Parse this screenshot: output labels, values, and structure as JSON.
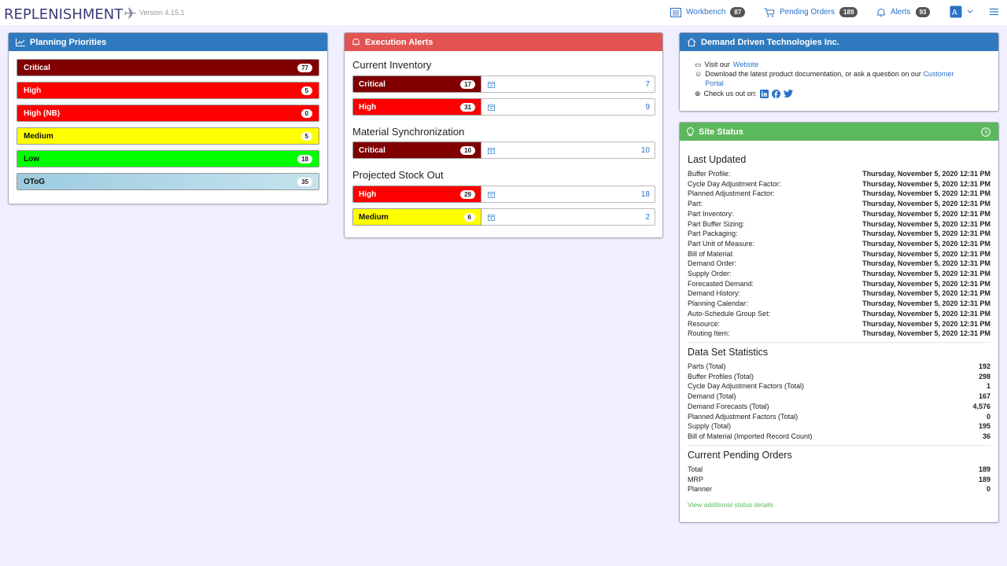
{
  "app": {
    "logo_text": "REPLENISHMENT",
    "version": "Version 4.15.1"
  },
  "nav": {
    "workbench_label": "Workbench",
    "workbench_count": "87",
    "pending_orders_label": "Pending Orders",
    "pending_orders_count": "189",
    "alerts_label": "Alerts",
    "alerts_count": "93"
  },
  "planning": {
    "title": "Planning Priorities",
    "items": [
      {
        "label": "Critical",
        "count": "77",
        "color": "#800000",
        "text_color": "#ffffff"
      },
      {
        "label": "High",
        "count": "5",
        "color": "#ff0000",
        "text_color": "#ffffff"
      },
      {
        "label": "High (NB)",
        "count": "0",
        "color": "#ff0000",
        "text_color": "#ffffff"
      },
      {
        "label": "Medium",
        "count": "5",
        "color": "#ffff00",
        "text_color": "#111111"
      },
      {
        "label": "Low",
        "count": "18",
        "color": "#00ff00",
        "text_color": "#111111"
      },
      {
        "label": "OToG",
        "count": "35",
        "color": "#a6d3e3",
        "text_color": "#111111"
      }
    ]
  },
  "execution": {
    "title": "Execution Alerts",
    "sections": [
      {
        "title": "Current Inventory",
        "rows": [
          {
            "label": "Critical",
            "count": "17",
            "value": "7",
            "color": "#800000",
            "text_color": "#ffffff"
          },
          {
            "label": "High",
            "count": "31",
            "value": "9",
            "color": "#ff0000",
            "text_color": "#ffffff"
          }
        ]
      },
      {
        "title": "Material Synchronization",
        "rows": [
          {
            "label": "Critical",
            "count": "10",
            "value": "10",
            "color": "#800000",
            "text_color": "#ffffff"
          }
        ]
      },
      {
        "title": "Projected Stock Out",
        "rows": [
          {
            "label": "High",
            "count": "29",
            "value": "18",
            "color": "#ff0000",
            "text_color": "#ffffff"
          },
          {
            "label": "Medium",
            "count": "6",
            "value": "2",
            "color": "#ffff00",
            "text_color": "#111111"
          }
        ]
      }
    ]
  },
  "company": {
    "title": "Demand Driven Technologies Inc.",
    "visit_text": "Visit our",
    "website_link": "Website",
    "download_text": "Download the latest product documentation, or ask a question on our",
    "portal_link_1": "Customer",
    "portal_link_2": "Portal",
    "social_text": "Check us out on:"
  },
  "site_status": {
    "title": "Site Status",
    "last_updated_title": "Last Updated",
    "last_updated": [
      {
        "k": "Buffer Profile:",
        "v": "Thursday, November 5, 2020 12:31 PM"
      },
      {
        "k": "Cycle Day Adjustment Factor:",
        "v": "Thursday, November 5, 2020 12:31 PM"
      },
      {
        "k": "Planned Adjustment Factor:",
        "v": "Thursday, November 5, 2020 12:31 PM"
      },
      {
        "k": "Part:",
        "v": "Thursday, November 5, 2020 12:31 PM"
      },
      {
        "k": "Part Inventory:",
        "v": "Thursday, November 5, 2020 12:31 PM"
      },
      {
        "k": "Part Buffer Sizing:",
        "v": "Thursday, November 5, 2020 12:31 PM"
      },
      {
        "k": "Part Packaging:",
        "v": "Thursday, November 5, 2020 12:31 PM"
      },
      {
        "k": "Part Unit of Measure:",
        "v": "Thursday, November 5, 2020 12:31 PM"
      },
      {
        "k": "Bill of Material:",
        "v": "Thursday, November 5, 2020 12:31 PM"
      },
      {
        "k": "Demand Order:",
        "v": "Thursday, November 5, 2020 12:31 PM"
      },
      {
        "k": "Supply Order:",
        "v": "Thursday, November 5, 2020 12:31 PM"
      },
      {
        "k": "Forecasted Demand:",
        "v": "Thursday, November 5, 2020 12:31 PM"
      },
      {
        "k": "Demand History:",
        "v": "Thursday, November 5, 2020 12:31 PM"
      },
      {
        "k": "Planning Calendar:",
        "v": "Thursday, November 5, 2020 12:31 PM"
      },
      {
        "k": "Auto-Schedule Group Set:",
        "v": "Thursday, November 5, 2020 12:31 PM"
      },
      {
        "k": "Resource:",
        "v": "Thursday, November 5, 2020 12:31 PM"
      },
      {
        "k": "Routing Item:",
        "v": "Thursday, November 5, 2020 12:31 PM"
      }
    ],
    "stats_title": "Data Set Statistics",
    "stats": [
      {
        "k": "Parts (Total)",
        "v": "192"
      },
      {
        "k": "Buffer Profiles (Total)",
        "v": "298"
      },
      {
        "k": "Cycle Day Adjustment Factors (Total)",
        "v": "1"
      },
      {
        "k": "Demand (Total)",
        "v": "167"
      },
      {
        "k": "Demand Forecasts (Total)",
        "v": "4,576"
      },
      {
        "k": "Planned Adjustment Factors (Total)",
        "v": "0"
      },
      {
        "k": "Supply (Total)",
        "v": "195"
      },
      {
        "k": "Bill of Material (Imported Record Count)",
        "v": "36"
      }
    ],
    "pending_title": "Current Pending Orders",
    "pending": [
      {
        "k": "Total",
        "v": "189"
      },
      {
        "k": "MRP",
        "v": "189"
      },
      {
        "k": "Planner",
        "v": "0"
      }
    ],
    "details_link": "View additional status details"
  }
}
